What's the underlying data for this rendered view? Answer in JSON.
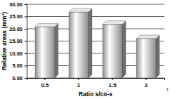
{
  "chart_data": {
    "type": "bar",
    "x_label": "Ratio s/co-s",
    "y_label": "Relative areas (mm²)",
    "categories": [
      "0.5",
      "1",
      "1.5",
      "2"
    ],
    "values": [
      20.8,
      26.8,
      21.8,
      16.0
    ],
    "color": "#8c8c8c",
    "ylim": [
      0,
      30
    ],
    "yticks": [
      {
        "value": 0,
        "label": "0.00"
      },
      {
        "value": 5,
        "label": "5.00"
      },
      {
        "value": 10,
        "label": "10.00"
      },
      {
        "value": 15,
        "label": "15.00"
      },
      {
        "value": 20,
        "label": "20.00"
      },
      {
        "value": 25,
        "label": "25.00"
      },
      {
        "value": 30,
        "label": "30.00"
      }
    ],
    "grid": true,
    "annotations": [
      "1"
    ]
  }
}
